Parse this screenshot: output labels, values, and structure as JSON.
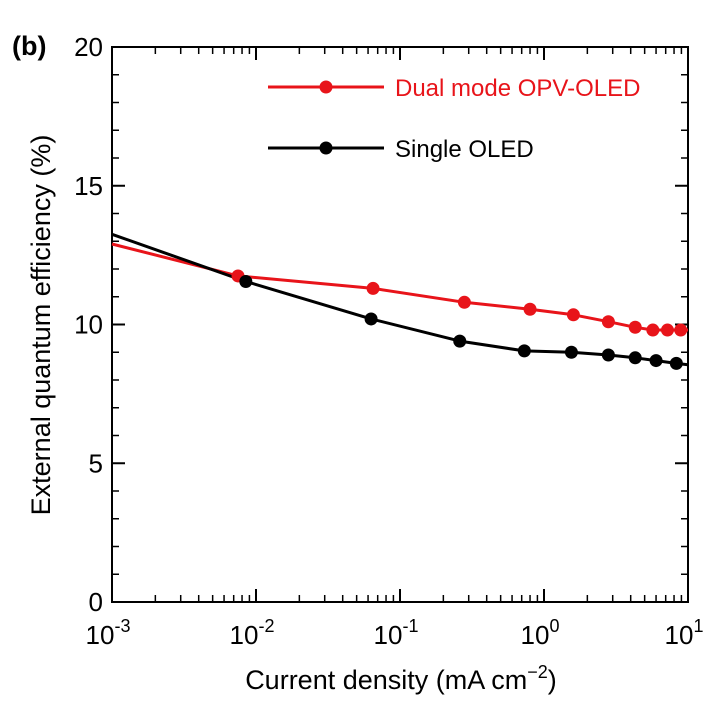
{
  "chart_data": {
    "type": "line",
    "panel_label": "(b)",
    "xlabel": "Current density (mA cm",
    "xlabel_exponent": "−2",
    "xlabel_close": ")",
    "ylabel": "External quantum efficiency (%)",
    "x_scale": "log",
    "xlim": [
      0.001,
      10
    ],
    "ylim": [
      0,
      20
    ],
    "x_ticks": [
      {
        "value": 0.001,
        "base": "10",
        "exp": "-3"
      },
      {
        "value": 0.01,
        "base": "10",
        "exp": "-2"
      },
      {
        "value": 0.1,
        "base": "10",
        "exp": "-1"
      },
      {
        "value": 1,
        "base": "10",
        "exp": "0"
      },
      {
        "value": 10,
        "base": "10",
        "exp": "1"
      }
    ],
    "y_ticks": [
      {
        "value": 0,
        "label": "0"
      },
      {
        "value": 5,
        "label": "5"
      },
      {
        "value": 10,
        "label": "10"
      },
      {
        "value": 15,
        "label": "15"
      },
      {
        "value": 20,
        "label": "20"
      }
    ],
    "grid": false,
    "legend_position": "top-right",
    "series": [
      {
        "name": "Dual mode OPV-OLED",
        "color": "#e8141a",
        "line_x": [
          0.001,
          0.0075,
          0.065,
          0.28,
          0.8,
          1.6,
          2.8,
          4.3,
          5.7,
          7.2,
          8.9,
          10
        ],
        "line_y": [
          12.9,
          11.75,
          11.3,
          10.8,
          10.55,
          10.35,
          10.1,
          9.9,
          9.8,
          9.8,
          9.8,
          9.8
        ],
        "points_x": [
          0.0075,
          0.065,
          0.28,
          0.8,
          1.6,
          2.8,
          4.3,
          5.7,
          7.2,
          8.9
        ],
        "points_y": [
          11.75,
          11.3,
          10.8,
          10.55,
          10.35,
          10.1,
          9.9,
          9.8,
          9.8,
          9.8
        ]
      },
      {
        "name": "Single OLED",
        "color": "#000000",
        "line_x": [
          0.001,
          0.0085,
          0.063,
          0.26,
          0.73,
          1.55,
          2.8,
          4.3,
          6.0,
          8.3,
          10
        ],
        "line_y": [
          13.25,
          11.55,
          10.2,
          9.4,
          9.05,
          9.0,
          8.9,
          8.8,
          8.7,
          8.6,
          8.55
        ],
        "points_x": [
          0.0085,
          0.063,
          0.26,
          0.73,
          1.55,
          2.8,
          4.3,
          6.0,
          8.3
        ],
        "points_y": [
          11.55,
          10.2,
          9.4,
          9.05,
          9.0,
          8.9,
          8.8,
          8.7,
          8.6
        ]
      }
    ]
  }
}
